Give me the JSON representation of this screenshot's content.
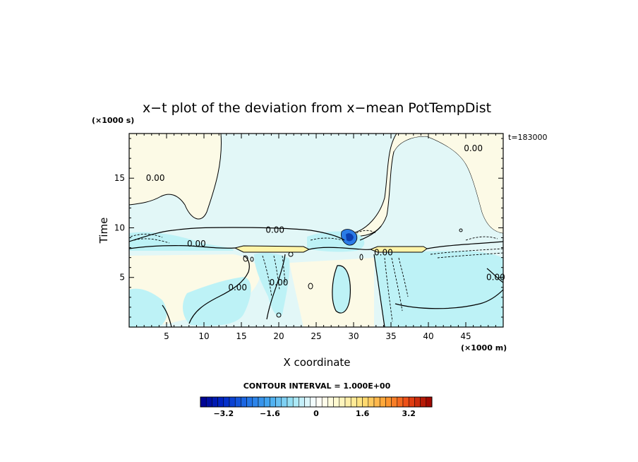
{
  "chart_data": {
    "type": "heatmap",
    "title": "x−t plot of the deviation from x−mean PotTempDist",
    "xlabel": "X coordinate",
    "ylabel": "Time",
    "x_unit": "(×1000 m)",
    "y_unit": "(×1000 s)",
    "time_label": "t=183000",
    "xlim": [
      0,
      50
    ],
    "ylim": [
      0,
      19.5
    ],
    "x_ticks": [
      "5",
      "10",
      "15",
      "20",
      "25",
      "30",
      "35",
      "40",
      "45"
    ],
    "y_ticks": [
      "5",
      "10",
      "15"
    ],
    "contour_labels": [
      {
        "text": "0.00",
        "x": 19.5,
        "y": 9.8
      },
      {
        "text": "0.00",
        "x": 9.0,
        "y": 8.4
      },
      {
        "text": "0.00",
        "x": 34.0,
        "y": 7.5
      },
      {
        "text": "0.00",
        "x": 3.5,
        "y": 15.0
      },
      {
        "text": "0.00",
        "x": 46.0,
        "y": 18.0
      },
      {
        "text": "0.00",
        "x": 14.5,
        "y": 4.0
      },
      {
        "text": "0.00",
        "x": 20.0,
        "y": 4.5
      },
      {
        "text": "0.00",
        "x": 49.0,
        "y": 5.0
      }
    ],
    "contour_interval_label": "CONTOUR INTERVAL = 1.000E+00",
    "colorbar": {
      "min": -4.0,
      "max": 4.0,
      "step": 0.2,
      "tick_labels": [
        "−3.2",
        "−1.6",
        "0",
        "1.6",
        "3.2"
      ],
      "tick_values": [
        -3.2,
        -1.6,
        0,
        1.6,
        3.2
      ]
    },
    "palette": {
      "deep_blue": "#0000a0",
      "blue": "#1e6ee0",
      "light_blue": "#bdf2f6",
      "pale_cyan": "#e2f7f7",
      "pale_yellow": "#fcfae6",
      "yellow": "#fff0a0",
      "orange": "#ff9a30",
      "dark_red": "#a00000"
    }
  }
}
